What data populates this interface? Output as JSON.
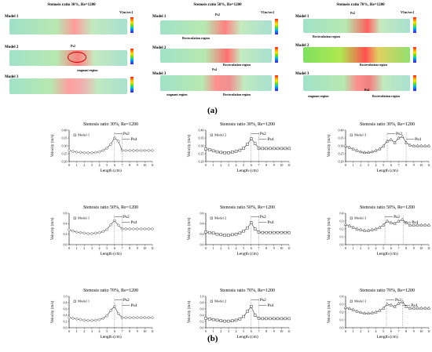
{
  "panel_a": {
    "caption": "(a)",
    "columns": [
      {
        "title": "Stenosis ratio 30%, Re=1200",
        "vlabel": "V[m/sec]",
        "models": [
          "Model 1",
          "Model 2",
          "Model 3"
        ],
        "annotations": [
          "Ps2",
          "stagnant region"
        ]
      },
      {
        "title": "Stenosis ratio 50%, Re=1200",
        "vlabel": "V[m/sec]",
        "models": [
          "Model 1",
          "Model 2",
          "Model 3"
        ],
        "annotations": [
          "Ps2",
          "Recirculation region",
          "Recirculation region",
          "Ps4",
          "stagnant region",
          "Recirculation region"
        ]
      },
      {
        "title": "Stenosis ratio 70%, Re=1200",
        "vlabel": "V[m/sec]",
        "models": [
          "Model 1",
          "Model 2",
          "Model 3"
        ],
        "annotations": [
          "Ps2",
          "Recirculation region",
          "Recirculation region",
          "Ps4",
          "stagnant region",
          "Recirculation region"
        ]
      }
    ]
  },
  "panel_b": {
    "caption": "(b)"
  },
  "chart_data": [
    {
      "type": "line",
      "title": "Stenosis ratio 30%, Re=1200",
      "xlabel": "Length (cm)",
      "ylabel": "Velocity (m/s)",
      "xlim": [
        0,
        11
      ],
      "ylim": [
        0.2,
        0.4
      ],
      "yticks": [
        "0.20",
        "0.25",
        "0.30",
        "0.35",
        "0.40"
      ],
      "ytickvals": [
        0.2,
        0.25,
        0.3,
        0.35,
        0.4
      ],
      "legend": "Model 1",
      "marker": "diamond",
      "annotations": [
        {
          "text": "Ps2",
          "x": 6.0
        },
        {
          "text": "Ps4",
          "x": 7.0
        }
      ],
      "x": [
        0,
        0.5,
        1,
        1.5,
        2,
        2.5,
        3,
        3.5,
        4,
        4.5,
        5,
        5.5,
        6,
        6.5,
        7,
        7.5,
        8,
        8.5,
        9,
        9.5,
        10,
        10.5,
        11
      ],
      "y": [
        0.27,
        0.265,
        0.26,
        0.258,
        0.256,
        0.255,
        0.256,
        0.258,
        0.262,
        0.27,
        0.285,
        0.31,
        0.35,
        0.33,
        0.27,
        0.27,
        0.27,
        0.27,
        0.27,
        0.27,
        0.27,
        0.27,
        0.27
      ]
    },
    {
      "type": "line",
      "title": "Stenosis ratio 30%, Re=1200",
      "xlabel": "Length (cm)",
      "ylabel": "Velocity (m/s)",
      "xlim": [
        0,
        11
      ],
      "ylim": [
        0.2,
        0.4
      ],
      "yticks": [
        "0.20",
        "0.25",
        "0.30",
        "0.35",
        "0.40"
      ],
      "ytickvals": [
        0.2,
        0.25,
        0.3,
        0.35,
        0.4
      ],
      "legend": "Model 2",
      "marker": "square",
      "annotations": [
        {
          "text": "Ps2",
          "x": 6.0
        },
        {
          "text": "Ps4",
          "x": 7.0
        }
      ],
      "x": [
        0,
        0.5,
        1,
        1.5,
        2,
        2.5,
        3,
        3.5,
        4,
        4.5,
        5,
        5.5,
        6,
        6.5,
        7,
        7.5,
        8,
        8.5,
        9,
        9.5,
        10,
        10.5,
        11
      ],
      "y": [
        0.28,
        0.275,
        0.268,
        0.262,
        0.258,
        0.256,
        0.256,
        0.26,
        0.265,
        0.272,
        0.285,
        0.31,
        0.345,
        0.315,
        0.285,
        0.283,
        0.283,
        0.283,
        0.283,
        0.283,
        0.283,
        0.283,
        0.283
      ]
    },
    {
      "type": "line",
      "title": "Stenosis ratio 30%, Re=1200",
      "xlabel": "Length (cm)",
      "ylabel": "Velocity (m/s)",
      "xlim": [
        0,
        11
      ],
      "ylim": [
        0.2,
        0.4
      ],
      "yticks": [
        "0.20",
        "0.25",
        "0.30",
        "0.35",
        "0.40"
      ],
      "ytickvals": [
        0.2,
        0.25,
        0.3,
        0.35,
        0.4
      ],
      "legend": "Model 3",
      "marker": "triangle",
      "annotations": [
        {
          "text": "Ps2",
          "x": 5.5
        },
        {
          "text": "Ps4",
          "x": 8.0
        }
      ],
      "x": [
        0,
        0.5,
        1,
        1.5,
        2,
        2.5,
        3,
        3.5,
        4,
        4.5,
        5,
        5.5,
        6,
        6.5,
        7,
        7.5,
        8,
        8.5,
        9,
        9.5,
        10,
        10.5,
        11
      ],
      "y": [
        0.3,
        0.29,
        0.28,
        0.27,
        0.262,
        0.258,
        0.258,
        0.262,
        0.27,
        0.28,
        0.3,
        0.33,
        0.34,
        0.32,
        0.35,
        0.36,
        0.32,
        0.305,
        0.3,
        0.3,
        0.3,
        0.3,
        0.3
      ]
    },
    {
      "type": "line",
      "title": "Stenosis ratio 50%, Re=1200",
      "xlabel": "Length (cm)",
      "ylabel": "Velocity (m/s)",
      "xlim": [
        0,
        11
      ],
      "ylim": [
        0,
        0.6
      ],
      "yticks": [
        "0.0",
        "0.2",
        "0.4",
        "0.6"
      ],
      "ytickvals": [
        0,
        0.2,
        0.4,
        0.6
      ],
      "legend": "Model 1",
      "marker": "diamond",
      "annotations": [
        {
          "text": "Ps2",
          "x": 6.0
        },
        {
          "text": "Ps4",
          "x": 7.0
        }
      ],
      "x": [
        0,
        0.5,
        1,
        1.5,
        2,
        2.5,
        3,
        3.5,
        4,
        4.5,
        5,
        5.5,
        6,
        6.5,
        7,
        7.5,
        8,
        8.5,
        9,
        9.5,
        10,
        10.5,
        11
      ],
      "y": [
        0.28,
        0.26,
        0.24,
        0.23,
        0.22,
        0.21,
        0.21,
        0.22,
        0.23,
        0.25,
        0.29,
        0.38,
        0.46,
        0.37,
        0.3,
        0.3,
        0.3,
        0.3,
        0.3,
        0.3,
        0.3,
        0.3,
        0.3
      ]
    },
    {
      "type": "line",
      "title": "Stenosis ratio 50%, Re=1200",
      "xlabel": "Length (cm)",
      "ylabel": "Velocity (m/s)",
      "xlim": [
        0,
        11
      ],
      "ylim": [
        0,
        0.6
      ],
      "yticks": [
        "0.0",
        "0.2",
        "0.4",
        "0.6"
      ],
      "ytickvals": [
        0,
        0.2,
        0.4,
        0.6
      ],
      "legend": "Model 2",
      "marker": "square",
      "annotations": [
        {
          "text": "Ps2",
          "x": 6.0
        },
        {
          "text": "Ps4",
          "x": 7.0
        }
      ],
      "x": [
        0,
        0.5,
        1,
        1.5,
        2,
        2.5,
        3,
        3.5,
        4,
        4.5,
        5,
        5.5,
        6,
        6.5,
        7,
        7.5,
        8,
        8.5,
        9,
        9.5,
        10,
        10.5,
        11
      ],
      "y": [
        0.24,
        0.23,
        0.22,
        0.2,
        0.19,
        0.18,
        0.18,
        0.19,
        0.2,
        0.22,
        0.26,
        0.32,
        0.42,
        0.3,
        0.24,
        0.23,
        0.23,
        0.23,
        0.23,
        0.23,
        0.23,
        0.23,
        0.23
      ]
    },
    {
      "type": "line",
      "title": "Stenosis ratio 50%, Re=1200",
      "xlabel": "Length (cm)",
      "ylabel": "Velocity (m/s)",
      "xlim": [
        0,
        11
      ],
      "ylim": [
        0,
        0.4
      ],
      "yticks": [
        "0.0",
        "0.1",
        "0.2",
        "0.3",
        "0.4"
      ],
      "ytickvals": [
        0,
        0.1,
        0.2,
        0.3,
        0.4
      ],
      "legend": "Model 3",
      "marker": "triangle",
      "annotations": [
        {
          "text": "Ps2",
          "x": 5.2
        },
        {
          "text": "Ps4",
          "x": 7.6
        }
      ],
      "x": [
        0,
        0.5,
        1,
        1.5,
        2,
        2.5,
        3,
        3.5,
        4,
        4.5,
        5,
        5.5,
        6,
        6.5,
        7,
        7.5,
        8,
        8.5,
        9,
        9.5,
        10,
        10.5,
        11
      ],
      "y": [
        0.26,
        0.24,
        0.22,
        0.2,
        0.19,
        0.18,
        0.18,
        0.19,
        0.2,
        0.22,
        0.25,
        0.3,
        0.28,
        0.27,
        0.3,
        0.32,
        0.28,
        0.25,
        0.25,
        0.25,
        0.25,
        0.25,
        0.25
      ]
    },
    {
      "type": "line",
      "title": "Stenosis ratio 70%, Re=1200",
      "xlabel": "Length (cm)",
      "ylabel": "Velocity (m/s)",
      "xlim": [
        0,
        11
      ],
      "ylim": [
        0,
        1.0
      ],
      "yticks": [
        "0.0",
        "0.2",
        "0.4",
        "0.6",
        "0.8",
        "1.0"
      ],
      "ytickvals": [
        0,
        0.2,
        0.4,
        0.6,
        0.8,
        1.0
      ],
      "legend": "Model 1",
      "marker": "diamond",
      "annotations": [
        {
          "text": "Ps2",
          "x": 6.0
        },
        {
          "text": "Ps4",
          "x": 7.0
        }
      ],
      "x": [
        0,
        0.5,
        1,
        1.5,
        2,
        2.5,
        3,
        3.5,
        4,
        4.5,
        5,
        5.5,
        6,
        6.5,
        7,
        7.5,
        8,
        8.5,
        9,
        9.5,
        10,
        10.5,
        11
      ],
      "y": [
        0.32,
        0.3,
        0.28,
        0.26,
        0.24,
        0.23,
        0.23,
        0.24,
        0.26,
        0.3,
        0.38,
        0.55,
        0.68,
        0.45,
        0.32,
        0.32,
        0.32,
        0.32,
        0.32,
        0.32,
        0.32,
        0.32,
        0.32
      ]
    },
    {
      "type": "line",
      "title": "Stenosis ratio 70%, Re=1200",
      "xlabel": "Length (cm)",
      "ylabel": "Velocity (m/s)",
      "xlim": [
        0,
        11
      ],
      "ylim": [
        0,
        1.0
      ],
      "yticks": [
        "0.0",
        "0.2",
        "0.4",
        "0.6",
        "0.8",
        "1.0"
      ],
      "ytickvals": [
        0,
        0.2,
        0.4,
        0.6,
        0.8,
        1.0
      ],
      "legend": "Model 2",
      "marker": "square",
      "annotations": [
        {
          "text": "Ps2",
          "x": 6.0
        },
        {
          "text": "Ps4",
          "x": 7.0
        }
      ],
      "x": [
        0,
        0.5,
        1,
        1.5,
        2,
        2.5,
        3,
        3.5,
        4,
        4.5,
        5,
        5.5,
        6,
        6.5,
        7,
        7.5,
        8,
        8.5,
        9,
        9.5,
        10,
        10.5,
        11
      ],
      "y": [
        0.3,
        0.28,
        0.26,
        0.24,
        0.22,
        0.21,
        0.21,
        0.22,
        0.24,
        0.28,
        0.36,
        0.52,
        0.68,
        0.4,
        0.3,
        0.29,
        0.29,
        0.29,
        0.29,
        0.29,
        0.29,
        0.29,
        0.29
      ]
    },
    {
      "type": "line",
      "title": "Stenosis ratio 70%, Re=1200",
      "xlabel": "Length (cm)",
      "ylabel": "Velocity (m/s)",
      "xlim": [
        0,
        11
      ],
      "ylim": [
        0,
        0.4
      ],
      "yticks": [
        "0.0",
        "0.1",
        "0.2",
        "0.3",
        "0.4"
      ],
      "ytickvals": [
        0,
        0.1,
        0.2,
        0.3,
        0.4
      ],
      "legend": "Model 3",
      "marker": "triangle",
      "annotations": [
        {
          "text": "Ps2",
          "x": 5.4
        },
        {
          "text": "Ps4",
          "x": 7.5
        }
      ],
      "x": [
        0,
        0.5,
        1,
        1.5,
        2,
        2.5,
        3,
        3.5,
        4,
        4.5,
        5,
        5.5,
        6,
        6.5,
        7,
        7.5,
        8,
        8.5,
        9,
        9.5,
        10,
        10.5,
        11
      ],
      "y": [
        0.26,
        0.245,
        0.23,
        0.21,
        0.195,
        0.185,
        0.185,
        0.19,
        0.2,
        0.22,
        0.25,
        0.3,
        0.29,
        0.27,
        0.31,
        0.33,
        0.27,
        0.25,
        0.25,
        0.25,
        0.25,
        0.25,
        0.25
      ]
    }
  ]
}
